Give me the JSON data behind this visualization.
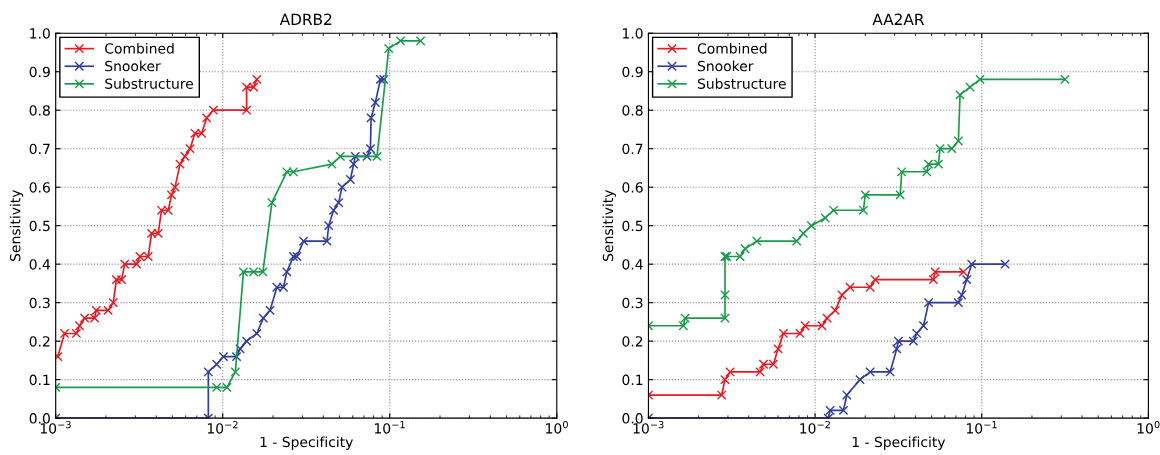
{
  "chart_data": [
    {
      "type": "line",
      "title": "ADRB2",
      "xlabel": "1 - Specificity",
      "ylabel": "Sensitivity",
      "log": "x",
      "grid": true,
      "legend": "top left",
      "marker": "cross",
      "line_style": "solid",
      "xlim": [
        0.001,
        1
      ],
      "xticks": [
        {
          "value": 0.001,
          "label": "10$^{−3}$"
        },
        {
          "value": 0.01,
          "label": "10$^{−2}$"
        },
        {
          "value": 0.1,
          "label": "10$^{−1}$"
        },
        {
          "value": 1,
          "label": "10$^{0}$"
        }
      ],
      "ylim": [
        0,
        1
      ],
      "yticks": [
        {
          "value": 0,
          "label": "0.0"
        },
        {
          "value": 0.1,
          "label": "0.1"
        },
        {
          "value": 0.2,
          "label": "0.2"
        },
        {
          "value": 0.3,
          "label": "0.3"
        },
        {
          "value": 0.4,
          "label": "0.4"
        },
        {
          "value": 0.5,
          "label": "0.5"
        },
        {
          "value": 0.6,
          "label": "0.6"
        },
        {
          "value": 0.7,
          "label": "0.7"
        },
        {
          "value": 0.8,
          "label": "0.8"
        },
        {
          "value": 0.9,
          "label": "0.9"
        },
        {
          "value": 1,
          "label": "1.0"
        }
      ],
      "series": [
        {
          "name": "Combined",
          "color": "#e8191f",
          "x": [
            0.00103,
            0.00113,
            0.00133,
            0.00139,
            0.00149,
            0.00171,
            0.00175,
            0.00206,
            0.00221,
            0.00231,
            0.00248,
            0.00259,
            0.00305,
            0.00319,
            0.00358,
            0.00375,
            0.00411,
            0.0043,
            0.00472,
            0.00494,
            0.00518,
            0.00555,
            0.00594,
            0.00637,
            0.00682,
            0.00748,
            0.00802,
            0.00879,
            0.0139,
            0.0139,
            0.0153,
            0.016
          ],
          "values": [
            0.16,
            0.22,
            0.22,
            0.24,
            0.26,
            0.26,
            0.28,
            0.28,
            0.3,
            0.36,
            0.36,
            0.4,
            0.4,
            0.42,
            0.42,
            0.48,
            0.48,
            0.54,
            0.54,
            0.58,
            0.6,
            0.66,
            0.68,
            0.7,
            0.74,
            0.74,
            0.78,
            0.8,
            0.8,
            0.86,
            0.86,
            0.88
          ]
        },
        {
          "name": "Snooker",
          "color": "#2e3d9e",
          "x": [
            0.001,
            0.0082,
            0.0082,
            0.0092,
            0.0101,
            0.0121,
            0.0127,
            0.0139,
            0.016,
            0.0175,
            0.0192,
            0.0211,
            0.0231,
            0.0242,
            0.0265,
            0.0278,
            0.0305,
            0.0421,
            0.0431,
            0.0461,
            0.0494,
            0.0518,
            0.0581,
            0.0608,
            0.0622,
            0.0731,
            0.0766,
            0.0773,
            0.082,
            0.0879,
            0.092
          ],
          "values": [
            0,
            0,
            0.12,
            0.14,
            0.16,
            0.16,
            0.18,
            0.2,
            0.22,
            0.26,
            0.28,
            0.34,
            0.34,
            0.38,
            0.42,
            0.42,
            0.46,
            0.46,
            0.5,
            0.54,
            0.56,
            0.6,
            0.62,
            0.66,
            0.68,
            0.68,
            0.7,
            0.78,
            0.82,
            0.88,
            0.88
          ]
        },
        {
          "name": "Substructure",
          "color": "#1a9a4a",
          "x": [
            0.001,
            0.0092,
            0.0106,
            0.0119,
            0.0133,
            0.0153,
            0.0174,
            0.0197,
            0.0242,
            0.0265,
            0.0451,
            0.0506,
            0.0839,
            0.0986,
            0.116,
            0.153
          ],
          "values": [
            0.08,
            0.08,
            0.08,
            0.12,
            0.38,
            0.38,
            0.38,
            0.56,
            0.64,
            0.64,
            0.66,
            0.68,
            0.68,
            0.96,
            0.98,
            0.98
          ]
        }
      ]
    },
    {
      "type": "line",
      "title": "AA2AR",
      "xlabel": "1 - Specificity",
      "ylabel": "Sensitivity",
      "log": "x",
      "grid": true,
      "legend": "top left",
      "marker": "cross",
      "line_style": "solid",
      "xlim": [
        0.001,
        1
      ],
      "xticks": [
        {
          "value": 0.001,
          "label": "10$^{−3}$"
        },
        {
          "value": 0.01,
          "label": "10$^{−2}$"
        },
        {
          "value": 0.1,
          "label": "10$^{−1}$"
        },
        {
          "value": 1,
          "label": "10$^{0}$"
        }
      ],
      "ylim": [
        0,
        1
      ],
      "yticks": [
        {
          "value": 0,
          "label": "0.0"
        },
        {
          "value": 0.1,
          "label": "0.1"
        },
        {
          "value": 0.2,
          "label": "0.2"
        },
        {
          "value": 0.3,
          "label": "0.3"
        },
        {
          "value": 0.4,
          "label": "0.4"
        },
        {
          "value": 0.5,
          "label": "0.5"
        },
        {
          "value": 0.6,
          "label": "0.6"
        },
        {
          "value": 0.7,
          "label": "0.7"
        },
        {
          "value": 0.8,
          "label": "0.8"
        },
        {
          "value": 0.9,
          "label": "0.9"
        },
        {
          "value": 1,
          "label": "1.0"
        }
      ],
      "series": [
        {
          "name": "Combined",
          "color": "#e8191f",
          "x": [
            0.001,
            0.00275,
            0.00288,
            0.00309,
            0.00468,
            0.0049,
            0.00562,
            0.006,
            0.00646,
            0.00813,
            0.0087,
            0.011,
            0.0118,
            0.0132,
            0.0145,
            0.0162,
            0.0214,
            0.0229,
            0.0513,
            0.0525,
            0.0776
          ],
          "values": [
            0.06,
            0.06,
            0.1,
            0.12,
            0.12,
            0.14,
            0.14,
            0.18,
            0.22,
            0.22,
            0.24,
            0.24,
            0.26,
            0.28,
            0.32,
            0.34,
            0.34,
            0.36,
            0.36,
            0.38,
            0.38
          ]
        },
        {
          "name": "Snooker",
          "color": "#2e3d9e",
          "x": [
            0.001,
            0.012,
            0.0123,
            0.0148,
            0.0155,
            0.0186,
            0.0214,
            0.0282,
            0.0309,
            0.0316,
            0.0389,
            0.0407,
            0.0447,
            0.048,
            0.0724,
            0.0759,
            0.0813,
            0.087,
            0.138
          ],
          "values": [
            0,
            0,
            0.02,
            0.02,
            0.06,
            0.1,
            0.12,
            0.12,
            0.18,
            0.2,
            0.2,
            0.22,
            0.24,
            0.3,
            0.3,
            0.32,
            0.36,
            0.4,
            0.4
          ]
        },
        {
          "name": "Substructure",
          "color": "#1a9a4a",
          "x": [
            0.001,
            0.00162,
            0.00166,
            0.00288,
            0.00288,
            0.00288,
            0.00295,
            0.00355,
            0.0038,
            0.00447,
            0.00776,
            0.0085,
            0.0095,
            0.0115,
            0.0129,
            0.0195,
            0.02,
            0.0324,
            0.0331,
            0.0468,
            0.0479,
            0.055,
            0.0562,
            0.0661,
            0.0724,
            0.0741,
            0.0851,
            0.0977,
            0.316
          ],
          "values": [
            0.24,
            0.24,
            0.26,
            0.26,
            0.32,
            0.42,
            0.42,
            0.42,
            0.44,
            0.46,
            0.46,
            0.48,
            0.5,
            0.52,
            0.54,
            0.54,
            0.58,
            0.58,
            0.64,
            0.64,
            0.66,
            0.66,
            0.7,
            0.7,
            0.72,
            0.84,
            0.86,
            0.88,
            0.88
          ]
        }
      ]
    }
  ]
}
